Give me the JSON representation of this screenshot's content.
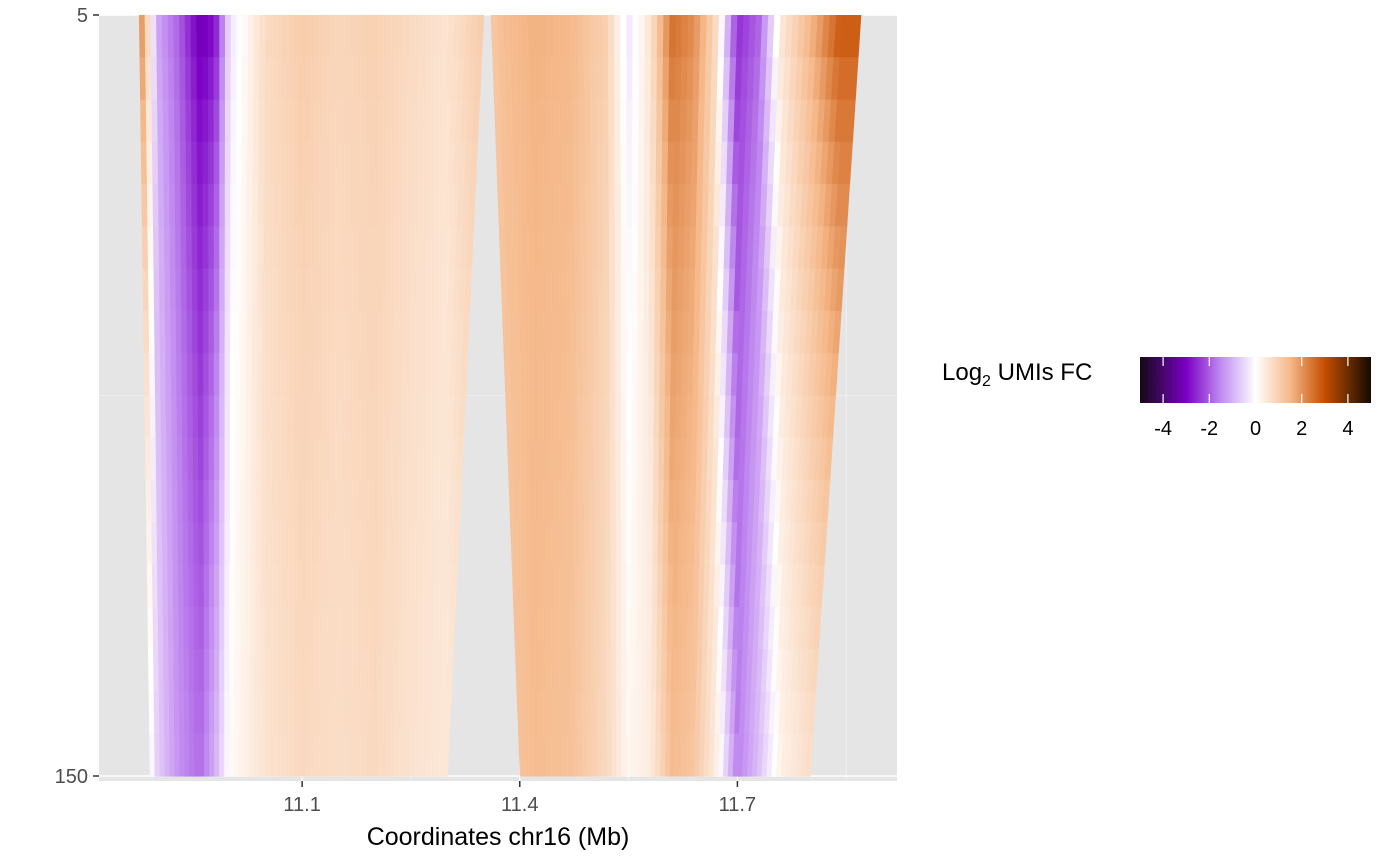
{
  "chart_data": {
    "type": "heatmap",
    "title": "",
    "xlabel": "Coordinates chr16 (Mb)",
    "ylabel": "",
    "xlim": [
      10.82,
      11.92
    ],
    "ylim": [
      5,
      150
    ],
    "x_ticks": [
      11.1,
      11.4,
      11.7
    ],
    "x_tick_labels": [
      "11.1",
      "11.4",
      "11.7"
    ],
    "y_ticks": [
      5,
      150
    ],
    "y_tick_labels": [
      "5",
      "150"
    ],
    "grid": true,
    "panel_background": "#E5E5E5",
    "legend": {
      "title_main": "Log",
      "title_subscript": "2",
      "title_rest": " UMIs FC",
      "placement": "right",
      "range": [
        -5,
        5
      ],
      "ticks": [
        -4,
        -2,
        0,
        2,
        4
      ],
      "tick_labels": [
        "-4",
        "-2",
        "0",
        "2",
        "4"
      ],
      "color_stops": [
        {
          "value": -5,
          "color": "#130A16"
        },
        {
          "value": -3,
          "color": "#7B00C5"
        },
        {
          "value": -1.5,
          "color": "#C08AF0"
        },
        {
          "value": 0,
          "color": "#FFFFFF"
        },
        {
          "value": 1.5,
          "color": "#F5B889"
        },
        {
          "value": 3,
          "color": "#C54D00"
        },
        {
          "value": 5,
          "color": "#130A00"
        }
      ]
    },
    "regions": [
      {
        "x_start_top": 10.875,
        "x_end_top": 11.35,
        "x_start_bottom": 10.89,
        "x_end_bottom": 11.3
      },
      {
        "x_start_top": 11.36,
        "x_end_top": 11.87,
        "x_start_bottom": 11.4,
        "x_end_bottom": 11.8
      }
    ],
    "column_profiles": [
      {
        "x": 10.88,
        "fc_top": 2.0,
        "fc_bottom": 0.8
      },
      {
        "x": 10.9,
        "fc_top": -1.2,
        "fc_bottom": -0.6
      },
      {
        "x": 10.93,
        "fc_top": -2.0,
        "fc_bottom": -1.4
      },
      {
        "x": 10.96,
        "fc_top": -3.4,
        "fc_bottom": -1.8
      },
      {
        "x": 10.98,
        "fc_top": -3.0,
        "fc_bottom": -1.0
      },
      {
        "x": 11.0,
        "fc_top": -0.4,
        "fc_bottom": 0.1
      },
      {
        "x": 11.05,
        "fc_top": 0.8,
        "fc_bottom": 0.6
      },
      {
        "x": 11.1,
        "fc_top": 1.1,
        "fc_bottom": 0.8
      },
      {
        "x": 11.15,
        "fc_top": 0.9,
        "fc_bottom": 0.7
      },
      {
        "x": 11.2,
        "fc_top": 1.0,
        "fc_bottom": 0.8
      },
      {
        "x": 11.25,
        "fc_top": 0.8,
        "fc_bottom": 0.6
      },
      {
        "x": 11.3,
        "fc_top": 0.6,
        "fc_bottom": 0.5
      },
      {
        "x": 11.38,
        "fc_top": 1.4,
        "fc_bottom": 1.2
      },
      {
        "x": 11.42,
        "fc_top": 1.6,
        "fc_bottom": 1.4
      },
      {
        "x": 11.47,
        "fc_top": 1.5,
        "fc_bottom": 1.3
      },
      {
        "x": 11.52,
        "fc_top": 1.0,
        "fc_bottom": 0.8
      },
      {
        "x": 11.55,
        "fc_top": -0.4,
        "fc_bottom": 0.2
      },
      {
        "x": 11.58,
        "fc_top": 0.6,
        "fc_bottom": 0.4
      },
      {
        "x": 11.61,
        "fc_top": 2.6,
        "fc_bottom": 1.4
      },
      {
        "x": 11.64,
        "fc_top": 2.2,
        "fc_bottom": 1.2
      },
      {
        "x": 11.67,
        "fc_top": 0.8,
        "fc_bottom": 0.4
      },
      {
        "x": 11.7,
        "fc_top": -2.6,
        "fc_bottom": -1.6
      },
      {
        "x": 11.73,
        "fc_top": -2.0,
        "fc_bottom": -0.8
      },
      {
        "x": 11.76,
        "fc_top": 0.5,
        "fc_bottom": 0.3
      },
      {
        "x": 11.8,
        "fc_top": 1.6,
        "fc_bottom": 0.7
      },
      {
        "x": 11.84,
        "fc_top": 3.0,
        "fc_bottom": 1.0
      }
    ]
  }
}
